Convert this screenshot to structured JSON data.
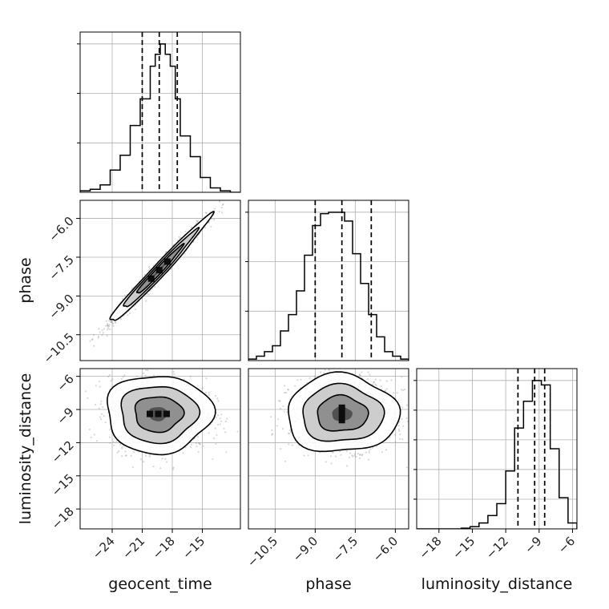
{
  "chart_data": {
    "type": "corner",
    "parameters": [
      "geocent_time",
      "phase",
      "luminosity_distance"
    ],
    "marginals": [
      {
        "name": "geocent_time",
        "bin_edges": [
          -27.2,
          -26.2,
          -25.2,
          -24.2,
          -23.2,
          -22.2,
          -21.2,
          -20.2,
          -19.7,
          -19.2,
          -18.7,
          -18.2,
          -17.7,
          -17.2,
          -16.2,
          -15.2,
          -14.2,
          -13.2,
          -12.2,
          -11.2
        ],
        "counts": [
          0.01,
          0.02,
          0.05,
          0.15,
          0.25,
          0.45,
          0.63,
          0.85,
          0.93,
          1.0,
          0.93,
          0.85,
          0.63,
          0.38,
          0.24,
          0.1,
          0.03,
          0.01,
          0
        ],
        "quantiles": [
          -21.0,
          -19.3,
          -17.5
        ],
        "xlim": [
          -27.2,
          -11.2
        ],
        "grid_y": [
          0.333,
          0.667,
          1.0
        ]
      },
      {
        "name": "phase",
        "bin_edges": [
          -11.5,
          -11.2,
          -10.9,
          -10.6,
          -10.3,
          -10.0,
          -9.7,
          -9.4,
          -9.1,
          -8.8,
          -8.5,
          -8.2,
          -7.9,
          -7.6,
          -7.3,
          -7.0,
          -6.7,
          -6.4,
          -6.1,
          -5.8,
          -5.5
        ],
        "counts": [
          0.01,
          0.03,
          0.06,
          0.1,
          0.2,
          0.31,
          0.47,
          0.71,
          0.91,
          0.99,
          1.0,
          1.0,
          0.94,
          0.72,
          0.52,
          0.31,
          0.16,
          0.06,
          0.03,
          0.01
        ],
        "quantiles": [
          -9.0,
          -8.0,
          -6.9
        ],
        "xlim": [
          -11.5,
          -5.5
        ],
        "grid_y": [
          0.333,
          0.667,
          1.0
        ]
      },
      {
        "name": "luminosity_distance",
        "bin_edges": [
          -20.0,
          -19.2,
          -18.4,
          -17.6,
          -16.8,
          -16.0,
          -15.2,
          -14.4,
          -13.6,
          -12.8,
          -12.0,
          -11.2,
          -10.4,
          -9.6,
          -8.8,
          -8.0,
          -7.2,
          -6.4,
          -5.6
        ],
        "counts": [
          0,
          0,
          0,
          0,
          0,
          0.005,
          0.015,
          0.04,
          0.09,
          0.17,
          0.39,
          0.68,
          0.86,
          1.0,
          0.97,
          0.54,
          0.21,
          0.04
        ],
        "quantiles": [
          -10.9,
          -9.4,
          -8.5
        ],
        "xlim": [
          -20.0,
          -5.6
        ],
        "grid_y": [
          0.2,
          0.4,
          0.6,
          0.8,
          1.0
        ]
      }
    ],
    "pairs": [
      {
        "x": "geocent_time",
        "y": "phase",
        "xlim": [
          -27.2,
          -11.2
        ],
        "ylim": [
          -11.5,
          -5.3
        ],
        "mean": [
          -19.3,
          -8.0
        ],
        "sd": [
          2.3,
          0.95
        ],
        "corr": 0.985,
        "contour_levels": [
          0.4,
          1.0,
          1.6,
          2.2
        ]
      },
      {
        "x": "geocent_time",
        "y": "luminosity_distance",
        "xlim": [
          -27.2,
          -11.2
        ],
        "ylim": [
          -19.8,
          -5.3
        ],
        "mean": [
          -19.4,
          -9.4
        ],
        "sd": [
          2.4,
          1.6
        ],
        "corr": 0.0,
        "contour_levels": [
          0.4,
          1.0,
          1.6,
          2.2
        ]
      },
      {
        "x": "phase",
        "y": "luminosity_distance",
        "xlim": [
          -11.5,
          -5.5
        ],
        "ylim": [
          -19.8,
          -5.3
        ],
        "mean": [
          -8.0,
          -9.4
        ],
        "sd": [
          0.95,
          1.6
        ],
        "corr": 0.0,
        "contour_levels": [
          0.4,
          1.0,
          1.6,
          2.2
        ]
      }
    ],
    "ticks": {
      "geocent_time": [
        -24,
        -21,
        -18,
        -15
      ],
      "phase": [
        -10.5,
        -9.0,
        -7.5,
        -6.0
      ],
      "luminosity_distance": [
        -18,
        -15,
        -12,
        -9,
        -6
      ]
    },
    "tick_labels": {
      "geocent_time": [
        "−24",
        "−21",
        "−18",
        "−15"
      ],
      "phase": [
        "−10.5",
        "−9.0",
        "−7.5",
        "−6.0"
      ],
      "luminosity_distance": [
        "−18",
        "−15",
        "−12",
        "−9",
        "−6"
      ]
    },
    "axis_labels": {
      "bottom": [
        "geocent_time",
        "phase",
        "luminosity_distance"
      ],
      "left": [
        "phase",
        "luminosity_distance"
      ]
    },
    "grid": true,
    "colors": {
      "line": "#000000",
      "grid": "#b0b0b0",
      "scatter": "#8c8c8c"
    }
  }
}
